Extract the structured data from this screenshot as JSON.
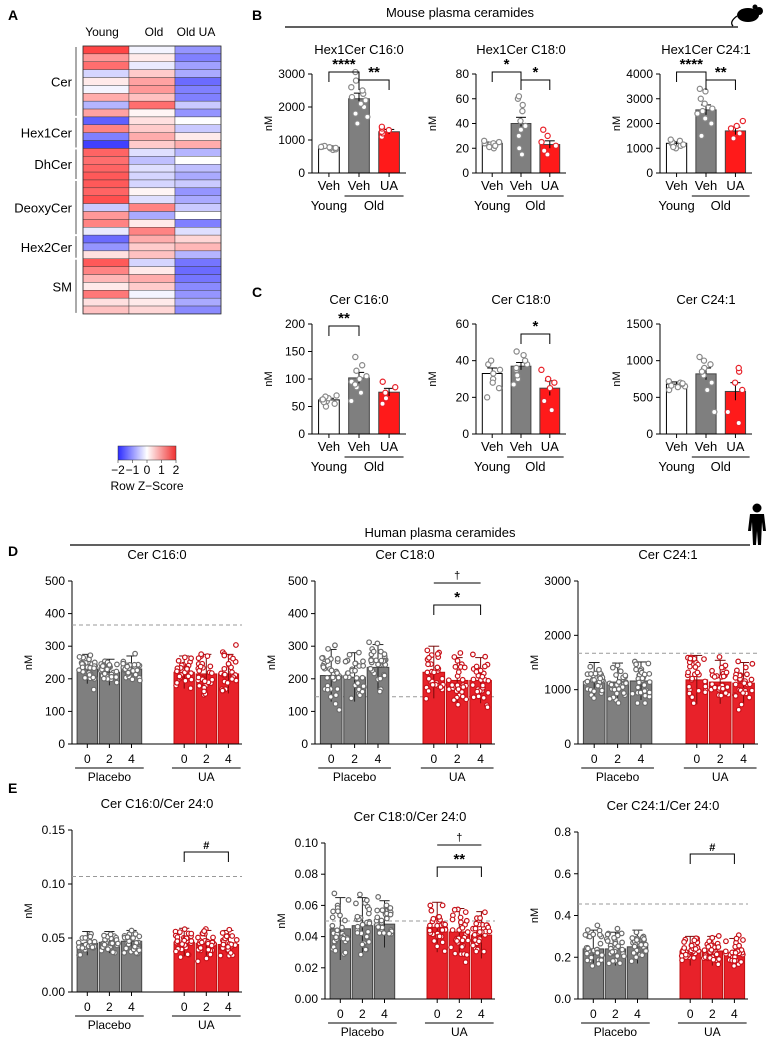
{
  "colors": {
    "young": "#ffffff",
    "veh_old": "#7f7f7f",
    "ua": "#ff1a1a",
    "placebo_bar": "#7f7f7f",
    "ua_bar": "#e8222a",
    "dot_grey": "#777777",
    "dot_red": "#d4151c",
    "heat_low": "#2b2bff",
    "heat_high": "#f03030",
    "dash": "#999999"
  },
  "panel_letters": [
    "A",
    "B",
    "C",
    "D",
    "E"
  ],
  "section_titles": {
    "mouse": "Mouse plasma ceramides",
    "human": "Human plasma ceramides"
  },
  "heatmap": {
    "columns": [
      "Young",
      "Old",
      "Old UA"
    ],
    "groups": [
      {
        "label": "Cer",
        "rows": 9
      },
      {
        "label": "Hex1Cer",
        "rows": 4
      },
      {
        "label": "DhCer",
        "rows": 4
      },
      {
        "label": "DeoxyCer",
        "rows": 7
      },
      {
        "label": "Hex2Cer",
        "rows": 3
      },
      {
        "label": "SM",
        "rows": 7
      }
    ],
    "z": [
      [
        1.8,
        -0.1,
        -1.0
      ],
      [
        1.0,
        0.2,
        -1.2
      ],
      [
        1.4,
        -0.2,
        -0.9
      ],
      [
        -0.4,
        0.5,
        -0.8
      ],
      [
        0.2,
        0.9,
        -1.4
      ],
      [
        -0.1,
        1.0,
        -1.2
      ],
      [
        0.8,
        0.6,
        -1.2
      ],
      [
        -0.7,
        1.4,
        -0.5
      ],
      [
        0.9,
        0.1,
        -1.0
      ],
      [
        -1.5,
        0.3,
        0.0
      ],
      [
        1.2,
        0.5,
        -0.5
      ],
      [
        -1.2,
        0.8,
        0.2
      ],
      [
        -1.8,
        0.5,
        0.8
      ],
      [
        1.5,
        -0.3,
        -0.7
      ],
      [
        1.4,
        -0.6,
        0.0
      ],
      [
        1.5,
        -0.3,
        -0.6
      ],
      [
        1.6,
        -0.4,
        -0.8
      ],
      [
        1.6,
        -0.4,
        -0.5
      ],
      [
        1.5,
        0.1,
        -1.0
      ],
      [
        1.7,
        -0.3,
        -0.8
      ],
      [
        -0.5,
        1.2,
        -0.5
      ],
      [
        1.0,
        -0.8,
        0.0
      ],
      [
        1.2,
        0.2,
        -1.2
      ],
      [
        -0.2,
        1.2,
        -0.3
      ],
      [
        -1.4,
        0.8,
        0.4
      ],
      [
        -1.0,
        0.5,
        0.7
      ],
      [
        0.3,
        0.6,
        -0.7
      ],
      [
        1.6,
        -0.4,
        -1.3
      ],
      [
        1.2,
        0.2,
        -1.4
      ],
      [
        0.7,
        0.8,
        -1.3
      ],
      [
        0.2,
        0.5,
        -1.1
      ],
      [
        1.3,
        -0.1,
        -1.0
      ],
      [
        0.3,
        0.2,
        -0.8
      ],
      [
        0.6,
        0.4,
        -1.1
      ]
    ],
    "legend_ticks": [
      "−2",
      "−1",
      "0",
      "1",
      "2"
    ],
    "legend_title": "Row Z−Score"
  },
  "chart_data": [
    {
      "id": "B1",
      "type": "bar",
      "panel": "B",
      "title": "Hex1Cer C16:0",
      "ylabel": "nM",
      "ylim": [
        0,
        3000
      ],
      "yticks": [
        0,
        1000,
        2000,
        3000
      ],
      "xticklabels": [
        "Veh",
        "Veh",
        "UA"
      ],
      "groups": [
        "Young",
        "Old"
      ],
      "bars": [
        {
          "mean": 780,
          "sem": 40,
          "points": [
            700,
            750,
            720,
            780,
            800,
            760,
            820,
            790
          ]
        },
        {
          "mean": 2250,
          "sem": 170,
          "points": [
            1500,
            1800,
            2000,
            2200,
            2300,
            2400,
            2500,
            2600,
            2800,
            3100,
            2100,
            1700
          ]
        },
        {
          "mean": 1250,
          "sem": 70,
          "points": [
            1100,
            1200,
            1250,
            1300,
            1350,
            1400
          ]
        }
      ],
      "sig": [
        {
          "from": 0,
          "to": 1,
          "label": "****"
        },
        {
          "from": 1,
          "to": 2,
          "label": "**"
        }
      ]
    },
    {
      "id": "B2",
      "type": "bar",
      "panel": "B",
      "title": "Hex1Cer C18:0",
      "ylabel": "nM",
      "ylim": [
        0,
        80
      ],
      "yticks": [
        0,
        20,
        40,
        60,
        80
      ],
      "xticklabels": [
        "Veh",
        "Veh",
        "UA"
      ],
      "groups": [
        "Young",
        "Old"
      ],
      "bars": [
        {
          "mean": 24,
          "sem": 1,
          "points": [
            20,
            22,
            24,
            23,
            25,
            26,
            24,
            22,
            21
          ]
        },
        {
          "mean": 40,
          "sem": 5,
          "points": [
            15,
            20,
            30,
            38,
            42,
            50,
            55,
            60,
            62,
            35
          ]
        },
        {
          "mean": 23,
          "sem": 3,
          "points": [
            15,
            18,
            22,
            25,
            30,
            35
          ]
        }
      ],
      "sig": [
        {
          "from": 0,
          "to": 1,
          "label": "*"
        },
        {
          "from": 1,
          "to": 2,
          "label": "*"
        }
      ]
    },
    {
      "id": "B3",
      "type": "bar",
      "panel": "B",
      "title": "Hex1Cer C24:1",
      "ylabel": "nM",
      "ylim": [
        0,
        4000
      ],
      "yticks": [
        0,
        1000,
        2000,
        3000,
        4000
      ],
      "xticklabels": [
        "Veh",
        "Veh",
        "UA"
      ],
      "groups": [
        "Young",
        "Old"
      ],
      "bars": [
        {
          "mean": 1200,
          "sem": 60,
          "points": [
            1000,
            1100,
            1200,
            1250,
            1300,
            1350,
            1150,
            1050
          ]
        },
        {
          "mean": 2550,
          "sem": 200,
          "points": [
            1500,
            2000,
            2400,
            2600,
            2800,
            3000,
            3300,
            3400,
            2500,
            2200
          ]
        },
        {
          "mean": 1700,
          "sem": 150,
          "points": [
            1400,
            1600,
            1800,
            1900,
            2100
          ]
        }
      ],
      "sig": [
        {
          "from": 0,
          "to": 1,
          "label": "****"
        },
        {
          "from": 1,
          "to": 2,
          "label": "**"
        }
      ]
    },
    {
      "id": "C1",
      "type": "bar",
      "panel": "C",
      "title": "Cer C16:0",
      "ylabel": "nM",
      "ylim": [
        0,
        200
      ],
      "yticks": [
        0,
        50,
        100,
        150,
        200
      ],
      "xticklabels": [
        "Veh",
        "Veh",
        "UA"
      ],
      "groups": [
        "Young",
        "Old"
      ],
      "bars": [
        {
          "mean": 62,
          "sem": 3,
          "points": [
            50,
            55,
            60,
            62,
            65,
            68,
            58,
            70,
            63
          ]
        },
        {
          "mean": 102,
          "sem": 10,
          "points": [
            60,
            75,
            85,
            95,
            105,
            115,
            125,
            140,
            100,
            90
          ]
        },
        {
          "mean": 76,
          "sem": 7,
          "points": [
            55,
            65,
            75,
            85,
            95
          ]
        }
      ],
      "sig": [
        {
          "from": 0,
          "to": 1,
          "label": "**"
        }
      ]
    },
    {
      "id": "C2",
      "type": "bar",
      "panel": "C",
      "title": "Cer C18:0",
      "ylabel": "nM",
      "ylim": [
        0,
        60
      ],
      "yticks": [
        0,
        20,
        40,
        60
      ],
      "xticklabels": [
        "Veh",
        "Veh",
        "UA"
      ],
      "groups": [
        "Young",
        "Old"
      ],
      "bars": [
        {
          "mean": 33,
          "sem": 3,
          "points": [
            20,
            25,
            30,
            35,
            38,
            40,
            28,
            33
          ]
        },
        {
          "mean": 37,
          "sem": 2,
          "points": [
            27,
            30,
            35,
            38,
            40,
            43,
            45,
            36,
            32
          ]
        },
        {
          "mean": 25,
          "sem": 4,
          "points": [
            13,
            18,
            25,
            30,
            35,
            28
          ]
        }
      ],
      "sig": [
        {
          "from": 1,
          "to": 2,
          "label": "*"
        }
      ]
    },
    {
      "id": "C3",
      "type": "bar",
      "panel": "C",
      "title": "Cer C24:1",
      "ylabel": "nM",
      "ylim": [
        0,
        1500
      ],
      "yticks": [
        0,
        500,
        1000,
        1500
      ],
      "xticklabels": [
        "Veh",
        "Veh",
        "UA"
      ],
      "groups": [
        "Young",
        "Old"
      ],
      "bars": [
        {
          "mean": 680,
          "sem": 30,
          "points": [
            600,
            650,
            700,
            680,
            720,
            640,
            690,
            660
          ]
        },
        {
          "mean": 820,
          "sem": 80,
          "points": [
            300,
            600,
            700,
            800,
            900,
            1000,
            1050,
            950,
            850
          ]
        },
        {
          "mean": 580,
          "sem": 120,
          "points": [
            150,
            300,
            600,
            700,
            850,
            900
          ]
        }
      ],
      "sig": []
    },
    {
      "id": "D1",
      "type": "bar",
      "panel": "D",
      "title": "Cer C16:0",
      "ylabel": "nM",
      "ylim": [
        0,
        500
      ],
      "yticks": [
        0,
        100,
        200,
        300,
        400,
        500
      ],
      "xticklabels": [
        "0",
        "2",
        "4",
        "0",
        "2",
        "4"
      ],
      "groups": [
        "Placebo",
        "UA"
      ],
      "refline": 365,
      "bars": [
        {
          "mean": 230,
          "sd": 45
        },
        {
          "mean": 220,
          "sd": 40
        },
        {
          "mean": 230,
          "sd": 40
        },
        {
          "mean": 220,
          "sd": 50
        },
        {
          "mean": 215,
          "sd": 60
        },
        {
          "mean": 215,
          "sd": 60
        }
      ],
      "sig": []
    },
    {
      "id": "D2",
      "type": "bar",
      "panel": "D",
      "title": "Cer C18:0",
      "ylabel": "nM",
      "ylim": [
        0,
        500
      ],
      "yticks": [
        0,
        100,
        200,
        300,
        400,
        500
      ],
      "xticklabels": [
        "0",
        "2",
        "4",
        "0",
        "2",
        "4"
      ],
      "groups": [
        "Placebo",
        "UA"
      ],
      "refline": 145,
      "bars": [
        {
          "mean": 210,
          "sd": 80
        },
        {
          "mean": 205,
          "sd": 75
        },
        {
          "mean": 235,
          "sd": 70
        },
        {
          "mean": 220,
          "sd": 80
        },
        {
          "mean": 195,
          "sd": 70
        },
        {
          "mean": 195,
          "sd": 70
        }
      ],
      "sig": [
        {
          "from": 3,
          "to": 5,
          "label": "*",
          "extra": "†"
        }
      ]
    },
    {
      "id": "D3",
      "type": "bar",
      "panel": "D",
      "title": "Cer C24:1",
      "ylabel": "nM",
      "ylim": [
        0,
        3000
      ],
      "yticks": [
        0,
        1000,
        2000,
        3000
      ],
      "xticklabels": [
        "0",
        "2",
        "4",
        "0",
        "2",
        "4"
      ],
      "groups": [
        "Placebo",
        "UA"
      ],
      "refline": 1670,
      "bars": [
        {
          "mean": 1150,
          "sd": 350
        },
        {
          "mean": 1140,
          "sd": 350
        },
        {
          "mean": 1160,
          "sd": 350
        },
        {
          "mean": 1180,
          "sd": 450
        },
        {
          "mean": 1140,
          "sd": 400
        },
        {
          "mean": 1120,
          "sd": 380
        }
      ],
      "sig": []
    },
    {
      "id": "E1",
      "type": "bar",
      "panel": "E",
      "title": "Cer C16:0/Cer 24:0",
      "ylabel": "nM",
      "ylim": [
        0,
        0.15
      ],
      "yticks": [
        "0.00",
        "0.05",
        "0.10",
        "0.15"
      ],
      "xticklabels": [
        "0",
        "2",
        "4",
        "0",
        "2",
        "4"
      ],
      "groups": [
        "Placebo",
        "UA"
      ],
      "refline": 0.107,
      "bars": [
        {
          "mean": 0.045,
          "sd": 0.011
        },
        {
          "mean": 0.046,
          "sd": 0.01
        },
        {
          "mean": 0.047,
          "sd": 0.01
        },
        {
          "mean": 0.046,
          "sd": 0.013
        },
        {
          "mean": 0.045,
          "sd": 0.012
        },
        {
          "mean": 0.044,
          "sd": 0.013
        }
      ],
      "sig": [
        {
          "from": 3,
          "to": 5,
          "label": "#"
        }
      ]
    },
    {
      "id": "E2",
      "type": "bar",
      "panel": "E",
      "title": "Cer C18:0/Cer 24:0",
      "ylabel": "nM",
      "ylim": [
        0,
        0.1
      ],
      "yticks": [
        "0.00",
        "0.02",
        "0.04",
        "0.06",
        "0.08",
        "0.10"
      ],
      "xticklabels": [
        "0",
        "2",
        "4",
        "0",
        "2",
        "4"
      ],
      "groups": [
        "Placebo",
        "UA"
      ],
      "refline": 0.05,
      "bars": [
        {
          "mean": 0.045,
          "sd": 0.02
        },
        {
          "mean": 0.047,
          "sd": 0.018
        },
        {
          "mean": 0.048,
          "sd": 0.015
        },
        {
          "mean": 0.046,
          "sd": 0.016
        },
        {
          "mean": 0.043,
          "sd": 0.015
        },
        {
          "mean": 0.041,
          "sd": 0.015
        }
      ],
      "sig": [
        {
          "from": 3,
          "to": 5,
          "label": "**",
          "extra": "†"
        }
      ]
    },
    {
      "id": "E3",
      "type": "bar",
      "panel": "E",
      "title": "Cer C24:1/Cer 24:0",
      "ylabel": "nM",
      "ylim": [
        0,
        0.8
      ],
      "yticks": [
        "0.0",
        "0.2",
        "0.4",
        "0.6",
        "0.8"
      ],
      "xticklabels": [
        "0",
        "2",
        "4",
        "0",
        "2",
        "4"
      ],
      "groups": [
        "Placebo",
        "UA"
      ],
      "refline": 0.455,
      "bars": [
        {
          "mean": 0.24,
          "sd": 0.09
        },
        {
          "mean": 0.24,
          "sd": 0.08
        },
        {
          "mean": 0.25,
          "sd": 0.08
        },
        {
          "mean": 0.23,
          "sd": 0.07
        },
        {
          "mean": 0.23,
          "sd": 0.07
        },
        {
          "mean": 0.22,
          "sd": 0.07
        }
      ],
      "sig": [
        {
          "from": 3,
          "to": 5,
          "label": "#"
        }
      ]
    }
  ]
}
